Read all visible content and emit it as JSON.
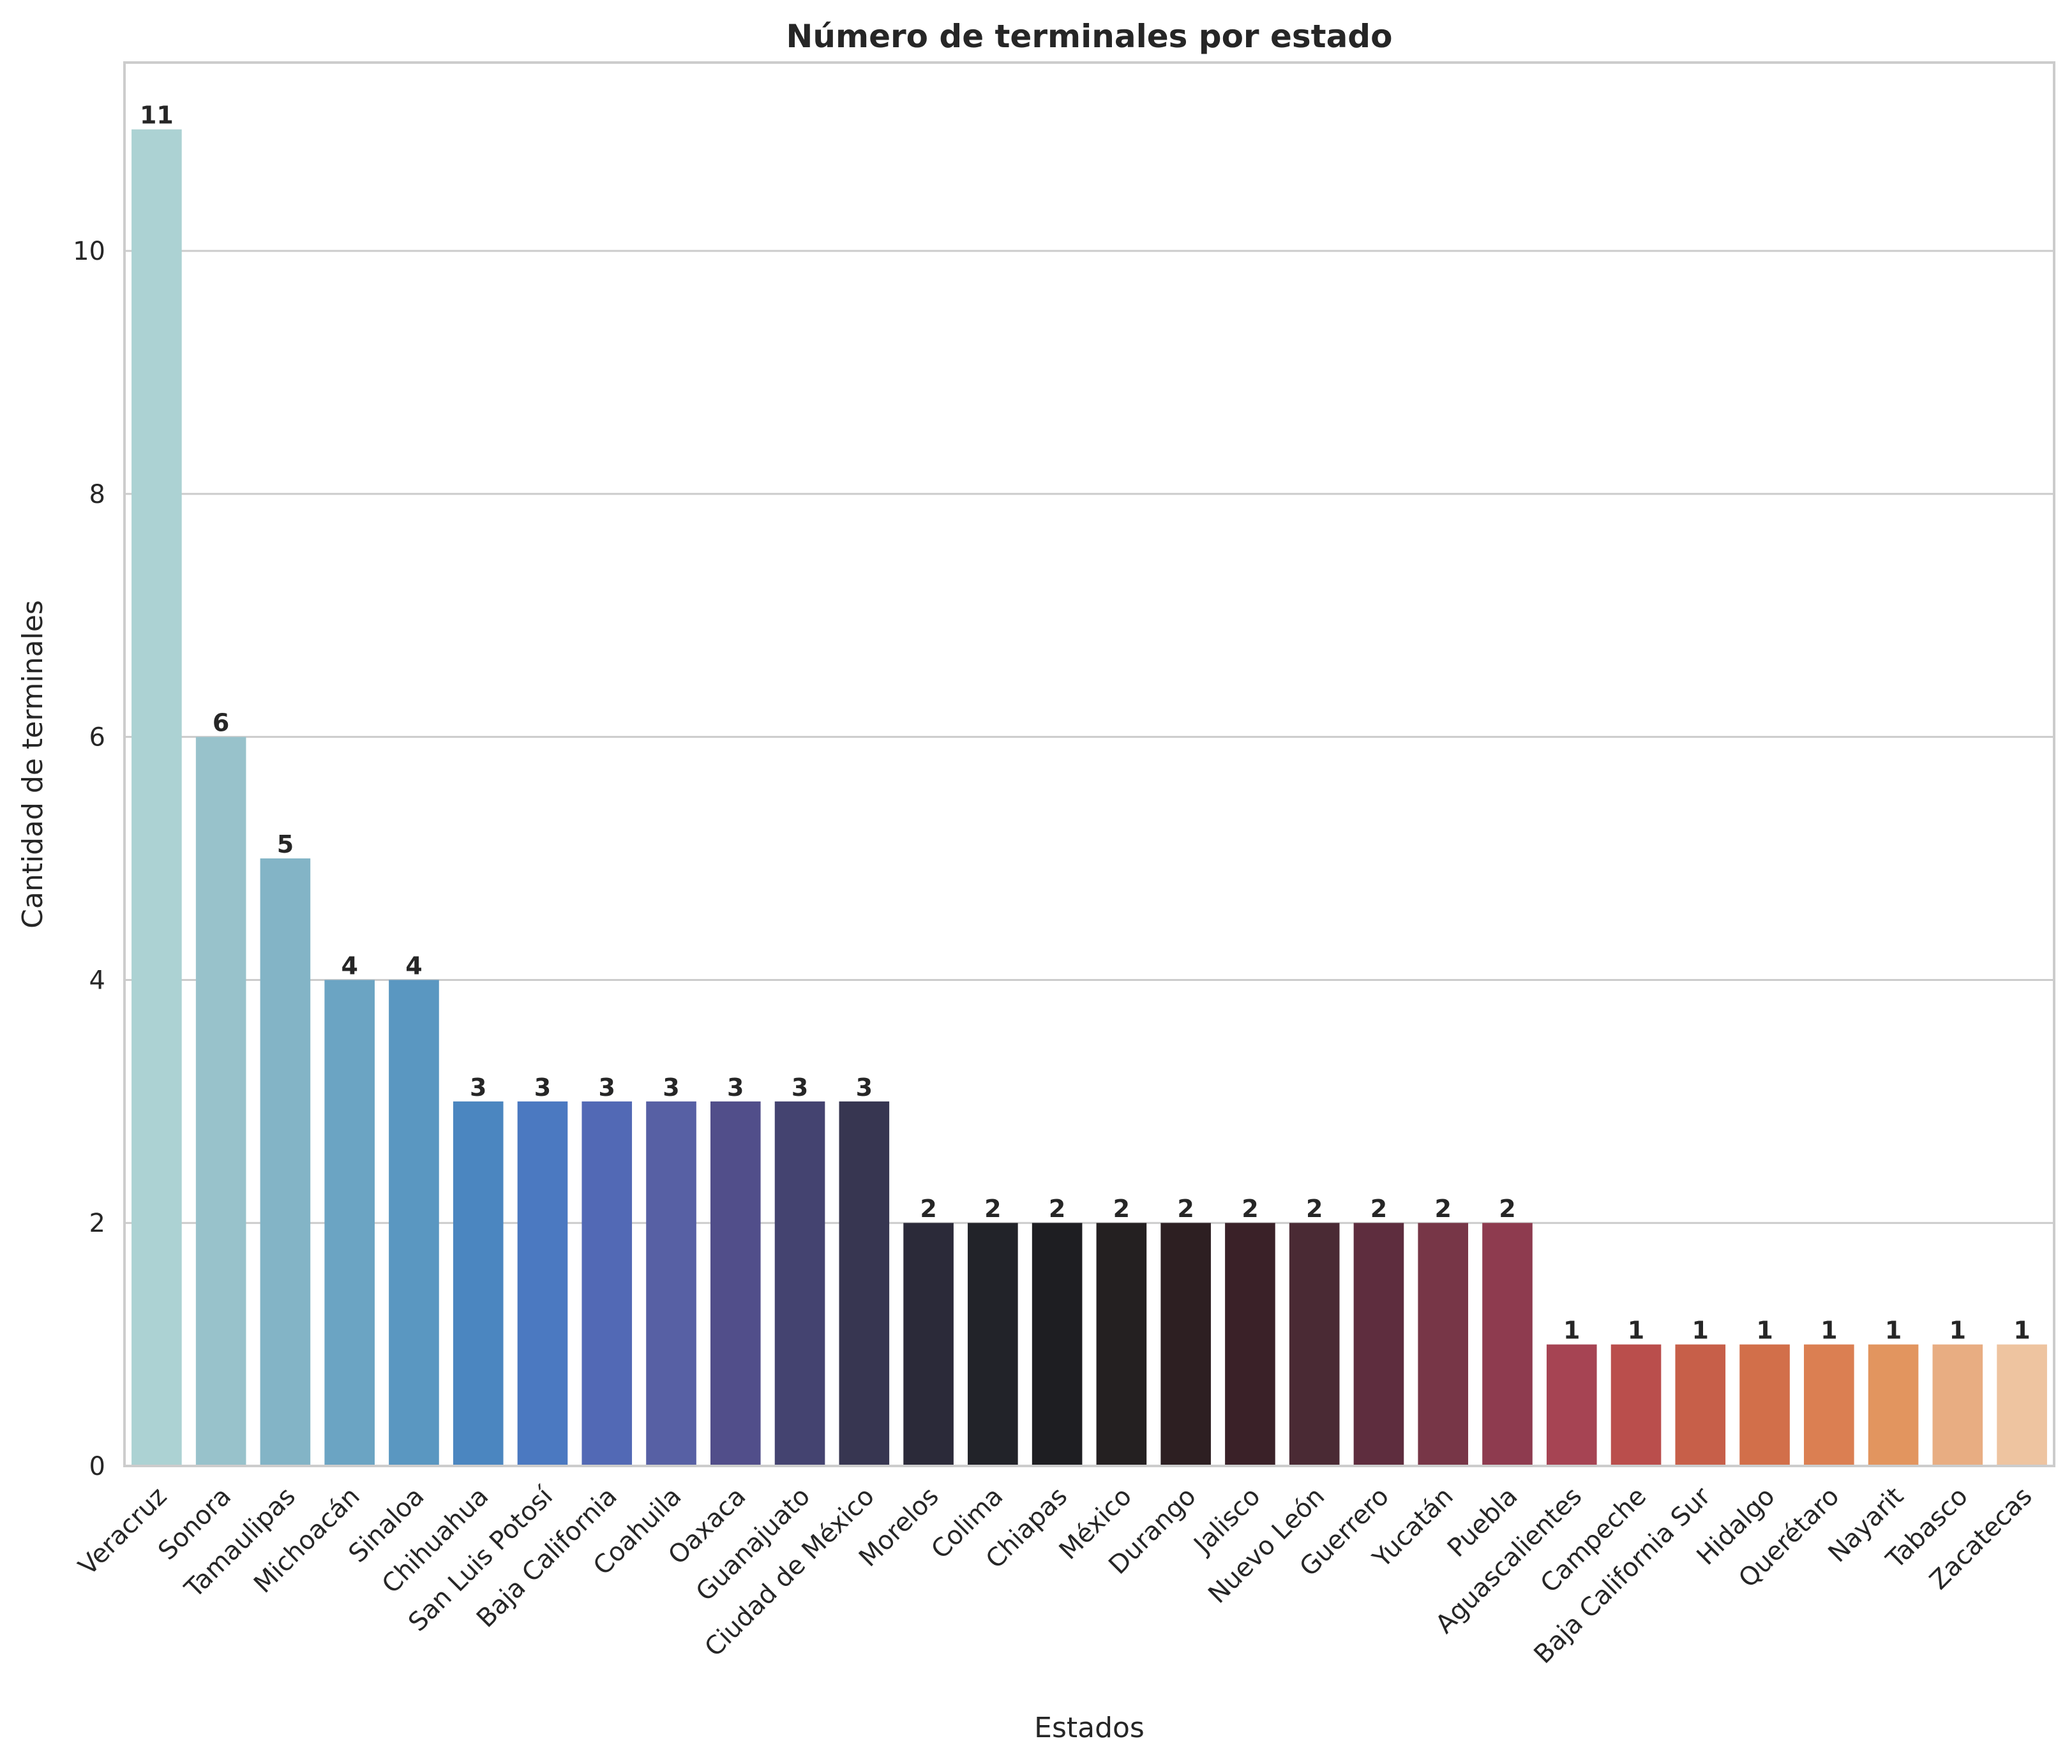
{
  "chart_data": {
    "type": "bar",
    "title": "Número de terminales por estado",
    "xlabel": "Estados",
    "ylabel": "Cantidad de terminales",
    "ylim": [
      0,
      11.55
    ],
    "yticks": [
      0,
      2,
      4,
      6,
      8,
      10
    ],
    "grid": "horizontal",
    "categories": [
      "Veracruz",
      "Sonora",
      "Tamaulipas",
      "Michoacán",
      "Sinaloa",
      "Chihuahua",
      "San Luis Potosí",
      "Baja California",
      "Coahuila",
      "Oaxaca",
      "Guanajuato",
      "Ciudad de México",
      "Morelos",
      "Colima",
      "Chiapas",
      "México",
      "Durango",
      "Jalisco",
      "Nuevo León",
      "Guerrero",
      "Yucatán",
      "Puebla",
      "Aguascalientes",
      "Campeche",
      "Baja California Sur",
      "Hidalgo",
      "Querétaro",
      "Nayarit",
      "Tabasco",
      "Zacatecas"
    ],
    "values": [
      11,
      6,
      5,
      4,
      4,
      3,
      3,
      3,
      3,
      3,
      3,
      3,
      2,
      2,
      2,
      2,
      2,
      2,
      2,
      2,
      2,
      2,
      1,
      1,
      1,
      1,
      1,
      1,
      1,
      1
    ],
    "colors": [
      "#acd2d3",
      "#98c2cb",
      "#83b4c6",
      "#6ba4c3",
      "#5a97c1",
      "#4b86c0",
      "#4b79c1",
      "#5269b5",
      "#5760a4",
      "#514e8a",
      "#444370",
      "#373651",
      "#2b2a39",
      "#222329",
      "#1e1e22",
      "#242021",
      "#2d1f22",
      "#3a2128",
      "#4a2a34",
      "#5e2d3e",
      "#773647",
      "#8e3b4f",
      "#a64453",
      "#ba4e4c",
      "#c75f49",
      "#d26f4a",
      "#db7f52",
      "#e2955f",
      "#e8ad82",
      "#eec4a0"
    ]
  }
}
